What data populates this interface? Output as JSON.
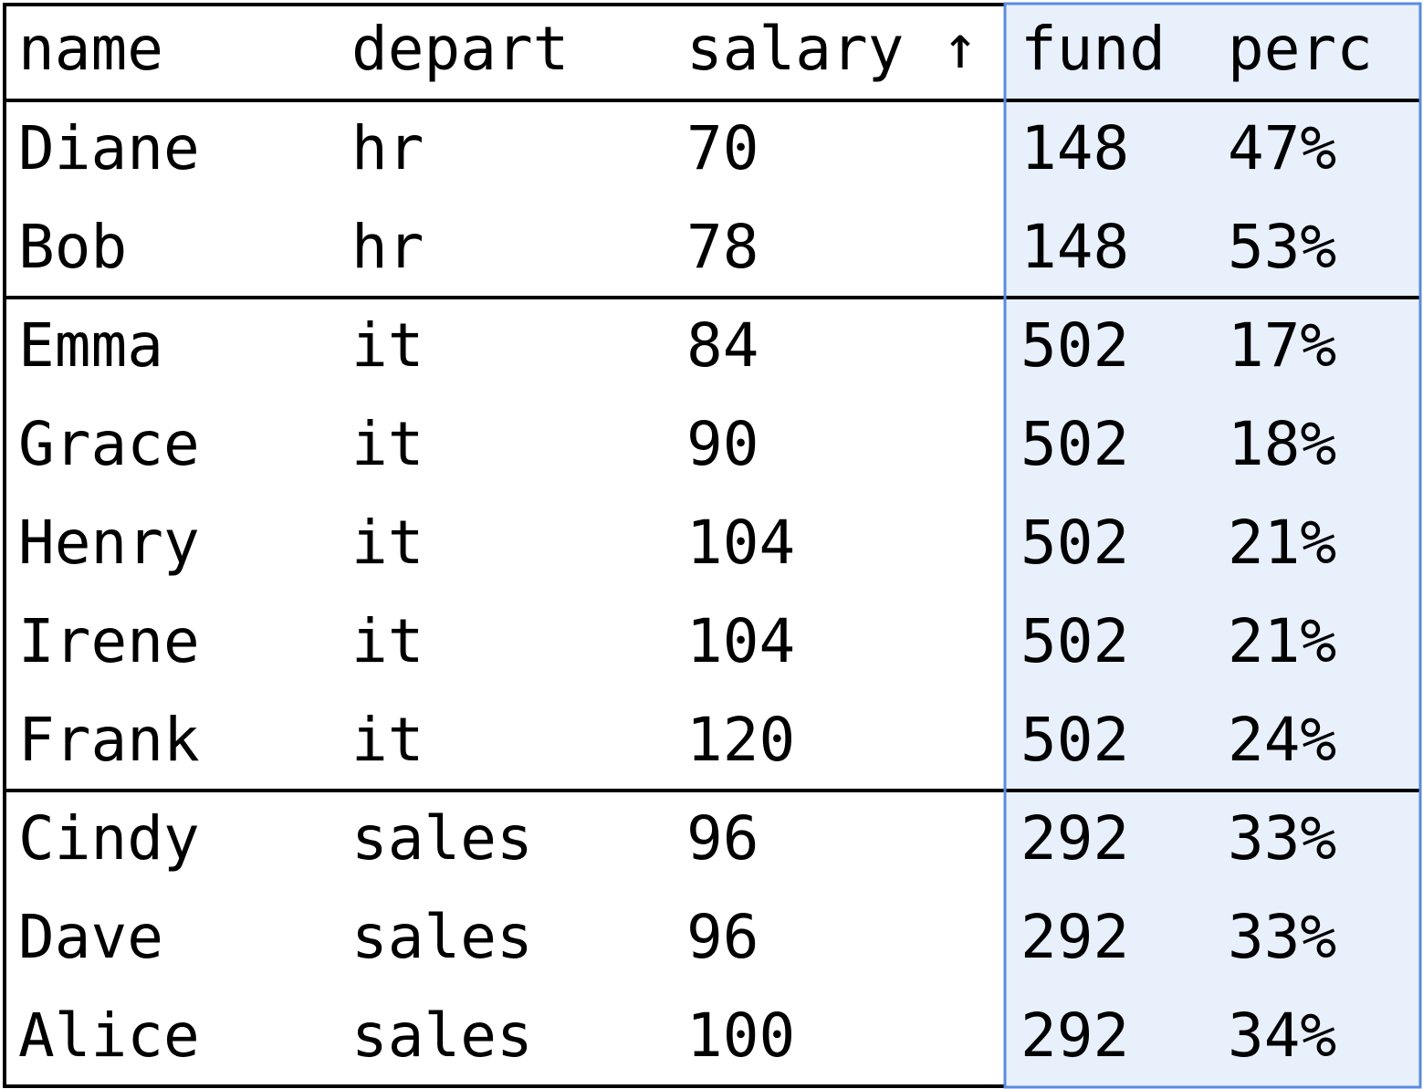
{
  "table": {
    "columns": [
      "name",
      "depart",
      "salary",
      "fund",
      "perc"
    ],
    "sort_indicator": "↑",
    "rows": [
      [
        "Diane",
        "hr",
        "70",
        "148",
        "47%"
      ],
      [
        "Bob",
        "hr",
        "78",
        "148",
        "53%"
      ],
      [
        "Emma",
        "it",
        "84",
        "502",
        "17%"
      ],
      [
        "Grace",
        "it",
        "90",
        "502",
        "18%"
      ],
      [
        "Henry",
        "it",
        "104",
        "502",
        "21%"
      ],
      [
        "Irene",
        "it",
        "104",
        "502",
        "21%"
      ],
      [
        "Frank",
        "it",
        "120",
        "502",
        "24%"
      ],
      [
        "Cindy",
        "sales",
        "96",
        "292",
        "33%"
      ],
      [
        "Dave",
        "sales",
        "96",
        "292",
        "33%"
      ],
      [
        "Alice",
        "sales",
        "100",
        "292",
        "34%"
      ]
    ]
  }
}
